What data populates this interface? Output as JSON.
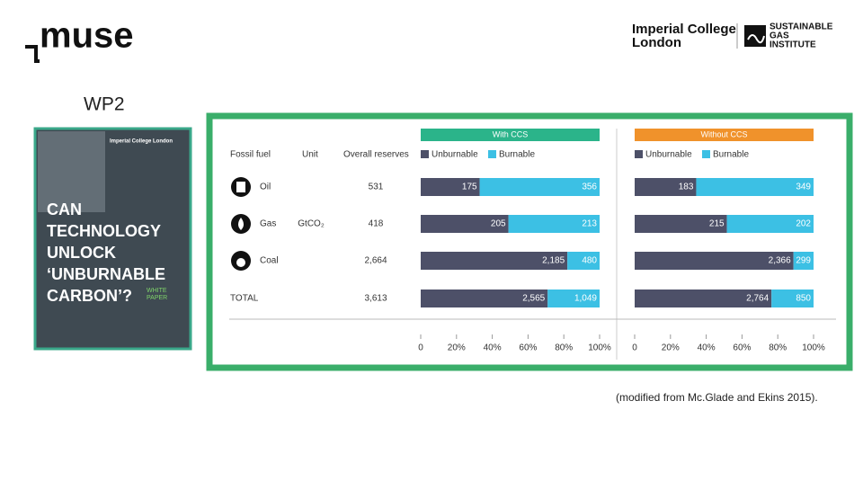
{
  "header": {
    "logo": "muse",
    "partner_lines": [
      "Imperial College",
      "London"
    ],
    "institute_lines": [
      "SUSTAINABLE",
      "GAS",
      "INSTITUTE"
    ]
  },
  "slide_title": "WP2",
  "cover": {
    "publisher": "Imperial College London",
    "title_lines": [
      "CAN",
      "TECHNOLOGY",
      "UNLOCK",
      "‘UNBURNABLE",
      "CARBON’?"
    ],
    "badge_lines": [
      "WHITE",
      "PAPER"
    ]
  },
  "caption": "(modified from Mc.Glade and Ekins 2015).",
  "chart_data": {
    "type": "bar",
    "orientation": "horizontal",
    "stacked": "percent",
    "columns": [
      "Fossil fuel",
      "Unit",
      "Overall reserves"
    ],
    "categories": [
      "Oil",
      "Gas",
      "Coal",
      "TOTAL"
    ],
    "unit": "GtCO₂",
    "reserves": {
      "values": [
        531,
        418,
        2664,
        3613
      ],
      "value_labels": [
        "531",
        "418",
        "2,664",
        "3,613"
      ]
    },
    "xlim": [
      0,
      100
    ],
    "xticks": [
      0,
      {
        "value": 20,
        "label": "20%"
      },
      {
        "value": 40,
        "label": "40%"
      },
      {
        "value": 60,
        "label": "60%"
      },
      {
        "value": 80,
        "label": "80%"
      },
      {
        "value": 100,
        "label": "100%"
      }
    ],
    "panels": [
      {
        "title": "With CCS",
        "color": "#2bb48a",
        "series": [
          {
            "name": "Unburnable",
            "color": "#4d5068",
            "values": [
              175,
              205,
              2185,
              2565
            ],
            "value_labels": [
              "175",
              "205",
              "2,185",
              "2,565"
            ]
          },
          {
            "name": "Burnable",
            "color": "#3cc0e4",
            "values": [
              356,
              213,
              480,
              1049
            ],
            "value_labels": [
              "356",
              "213",
              "480",
              "1,049"
            ]
          }
        ]
      },
      {
        "title": "Without CCS",
        "color": "#f0922b",
        "series": [
          {
            "name": "Unburnable",
            "color": "#4d5068",
            "values": [
              183,
              215,
              2366,
              2764
            ],
            "value_labels": [
              "183",
              "215",
              "2,366",
              "2,764"
            ]
          },
          {
            "name": "Burnable",
            "color": "#3cc0e4",
            "values": [
              349,
              202,
              299,
              850
            ],
            "value_labels": [
              "349",
              "202",
              "299",
              "850"
            ]
          }
        ]
      }
    ]
  }
}
